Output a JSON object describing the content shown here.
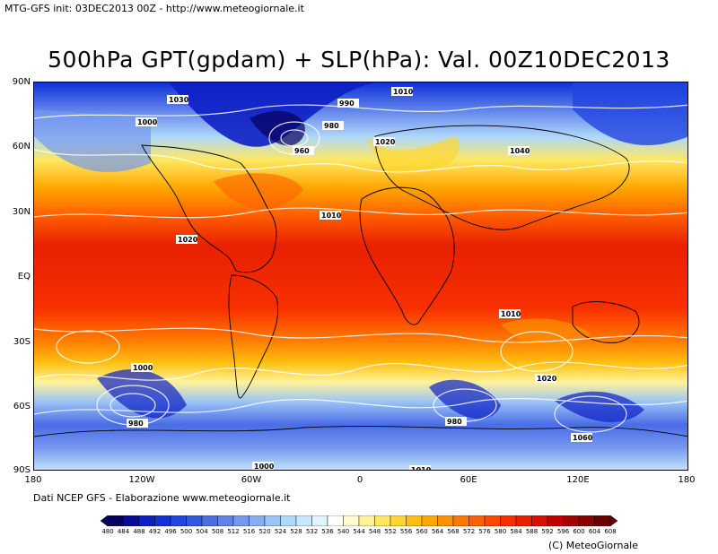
{
  "header": {
    "text": "MTG-GFS init: 03DEC2013 00Z - http://www.meteogiornale.it"
  },
  "title": "500hPa GPT(gpdam) + SLP(hPa): Val. 00Z10DEC2013",
  "map": {
    "lat_labels": [
      "90N",
      "60N",
      "30N",
      "EQ",
      "30S",
      "60S",
      "90S"
    ],
    "lon_labels": [
      "180",
      "120W",
      "60W",
      "0",
      "60E",
      "120E",
      "180"
    ],
    "isobar_labels": [
      "1030",
      "1000",
      "1010",
      "990",
      "1020",
      "980",
      "1040",
      "960",
      "1060"
    ]
  },
  "credit": "Dati NCEP GFS - Elaborazione www.meteogiornale.it",
  "copyright": "(C) MeteoGiornale",
  "colorbar": {
    "ticks": [
      "480",
      "484",
      "488",
      "492",
      "496",
      "500",
      "504",
      "508",
      "512",
      "516",
      "520",
      "524",
      "528",
      "532",
      "536",
      "540",
      "544",
      "548",
      "552",
      "556",
      "560",
      "564",
      "568",
      "572",
      "576",
      "580",
      "584",
      "588",
      "592",
      "596",
      "600",
      "604",
      "608"
    ],
    "colors": [
      "#05005f",
      "#0a0a9a",
      "#0d1fc4",
      "#1030d8",
      "#2244e0",
      "#3358e4",
      "#4a6ce6",
      "#5f82ea",
      "#7598ee",
      "#88aef2",
      "#9cc4f6",
      "#b0d8fa",
      "#c8e8fc",
      "#e0f4fe",
      "#ffffff",
      "#fffbd0",
      "#fff39a",
      "#ffe860",
      "#ffd530",
      "#ffbf10",
      "#ffa800",
      "#ff9000",
      "#ff7800",
      "#ff6000",
      "#ff4800",
      "#f83000",
      "#e82000",
      "#d81000",
      "#c00000",
      "#a40000",
      "#880000",
      "#6c0000"
    ]
  }
}
